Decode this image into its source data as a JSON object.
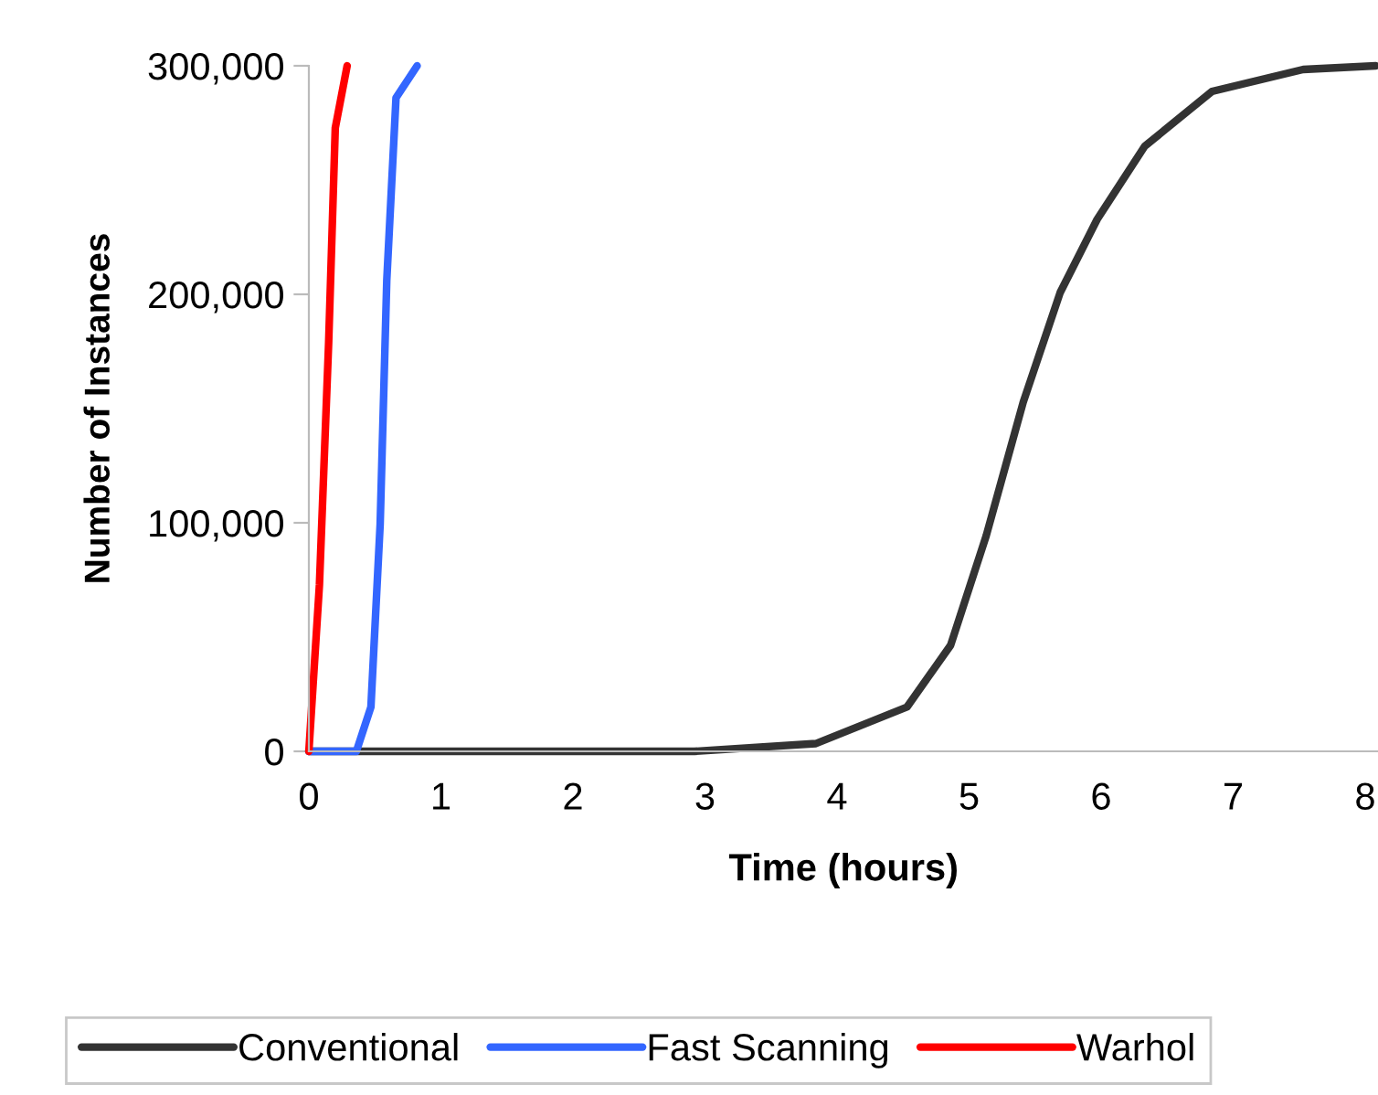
{
  "chart_data": {
    "type": "line",
    "xlabel": "Time (hours)",
    "ylabel": "Number of Instances",
    "xlim": [
      0,
      8.1
    ],
    "xticks": [
      0,
      1,
      2,
      3,
      4,
      5,
      6,
      7,
      8
    ],
    "ylim": [
      0,
      300000
    ],
    "yticks": [
      {
        "value": 0,
        "label": "0"
      },
      {
        "value": 100000,
        "label": "100,000"
      },
      {
        "value": 200000,
        "label": "200,000"
      },
      {
        "value": 300000,
        "label": "300,000"
      }
    ],
    "grid": false,
    "legend": "bottom",
    "marker": "none",
    "line_style": "solid",
    "series": [
      {
        "name": "Conventional",
        "color": "#333333",
        "x": [
          0,
          1,
          2,
          2.92,
          3.84,
          4.53,
          4.86,
          5.13,
          5.41,
          5.69,
          5.97,
          6.33,
          6.84,
          7.53,
          8.08
        ],
        "values": [
          0,
          0,
          0,
          0,
          3400,
          19400,
          46400,
          94400,
          152800,
          200800,
          232800,
          264800,
          288800,
          298400,
          300000
        ]
      },
      {
        "name": "Fast Scanning",
        "color": "#3366ff",
        "x": [
          0,
          0.36,
          0.47,
          0.54,
          0.59,
          0.66,
          0.82
        ],
        "values": [
          0,
          0,
          19400,
          99400,
          206000,
          286000,
          300000
        ]
      },
      {
        "name": "Warhol",
        "color": "#ff0000",
        "x": [
          0,
          0.08,
          0.15,
          0.2,
          0.29
        ],
        "values": [
          0,
          72800,
          179000,
          272800,
          300000
        ]
      }
    ]
  }
}
